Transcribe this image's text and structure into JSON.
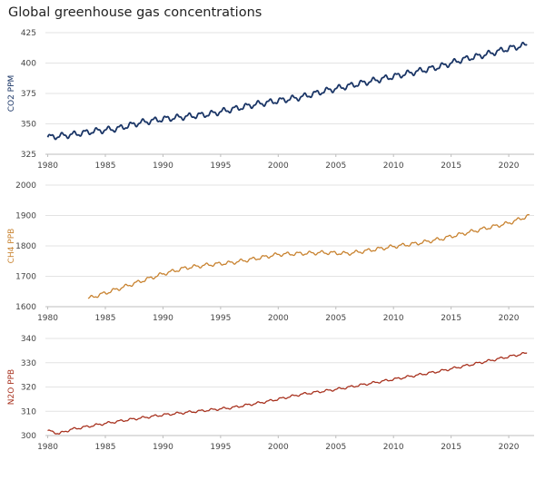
{
  "title": "Global greenhouse gas concentrations",
  "chart_data": [
    {
      "type": "line",
      "ylabel": "CO2 PPM",
      "color": "#1a3566",
      "xlim": [
        1979.8,
        2022.2
      ],
      "ylim": [
        325,
        425
      ],
      "yticks": [
        325,
        350,
        375,
        400,
        425
      ],
      "xticks": [
        1980,
        1985,
        1990,
        1995,
        2000,
        2005,
        2010,
        2015,
        2020
      ],
      "grid": true,
      "series": [
        {
          "x": [
            1980,
            1982,
            1984,
            1986,
            1988,
            1990,
            1992,
            1994,
            1996,
            1998,
            2000,
            2002,
            2004,
            2006,
            2008,
            2010,
            2012,
            2014,
            2016,
            2018,
            2020,
            2021.6
          ],
          "values": [
            339,
            341,
            344,
            346,
            351,
            354,
            356,
            358,
            362,
            366,
            369,
            372,
            377,
            381,
            385,
            389,
            393,
            397,
            403,
            407,
            412,
            415
          ],
          "seasonal_amplitude": 2
        }
      ]
    },
    {
      "type": "line",
      "ylabel": "CH4 PPB",
      "color": "#c8822f",
      "xlim": [
        1979.8,
        2022.2
      ],
      "ylim": [
        1600,
        2000
      ],
      "yticks": [
        1600,
        1700,
        1800,
        1900,
        2000
      ],
      "xticks": [
        1980,
        1985,
        1990,
        1995,
        2000,
        2005,
        2010,
        2015,
        2020
      ],
      "grid": true,
      "series": [
        {
          "x": [
            1983.5,
            1985,
            1987,
            1990,
            1992,
            1994,
            1996,
            1998,
            2000,
            2002,
            2004,
            2006,
            2007,
            2010,
            2012,
            2014,
            2016,
            2018,
            2020,
            2021.8
          ],
          "values": [
            1627,
            1645,
            1670,
            1708,
            1728,
            1738,
            1745,
            1758,
            1772,
            1775,
            1778,
            1775,
            1780,
            1798,
            1808,
            1822,
            1840,
            1858,
            1875,
            1900
          ],
          "seasonal_amplitude": 5
        }
      ]
    },
    {
      "type": "line",
      "ylabel": "N2O PPB",
      "color": "#a8321f",
      "xlim": [
        1979.8,
        2022.2
      ],
      "ylim": [
        300,
        340
      ],
      "yticks": [
        300,
        310,
        320,
        330,
        340
      ],
      "xticks": [
        1980,
        1985,
        1990,
        1995,
        2000,
        2005,
        2010,
        2015,
        2020
      ],
      "grid": true,
      "series": [
        {
          "x": [
            1980,
            1981,
            1982,
            1985,
            1987,
            1990,
            1993,
            1996,
            1999,
            2002,
            2005,
            2008,
            2011,
            2014,
            2017,
            2020,
            2021.6
          ],
          "values": [
            302,
            300.8,
            302.5,
            305,
            306.5,
            308.5,
            310,
            311.5,
            314,
            317,
            319,
            321.5,
            324,
            326.5,
            329.5,
            332.5,
            334
          ],
          "seasonal_amplitude": 0.4
        }
      ]
    }
  ]
}
